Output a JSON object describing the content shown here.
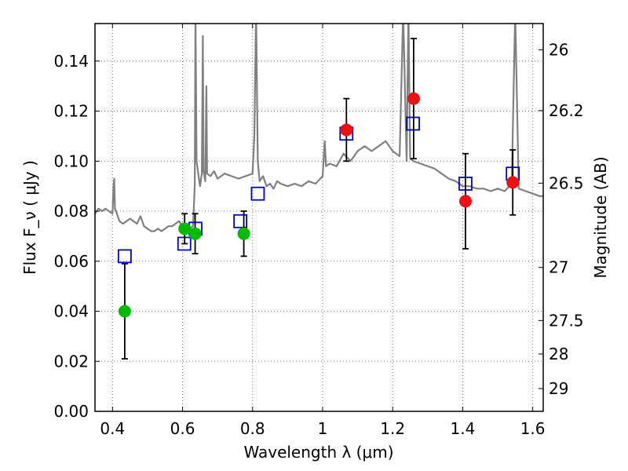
{
  "chart_data": {
    "type": "scatter",
    "xlabel": "Wavelength  λ (μm)",
    "ylabel": "Flux  F_ν  ( μJy )",
    "y2label": "Magnitude (AB)",
    "xlim": [
      0.35,
      1.63
    ],
    "ylim": [
      0.0,
      0.155
    ],
    "grid": true,
    "x_ticks": [
      0.4,
      0.6,
      0.8,
      1.0,
      1.2,
      1.4,
      1.6
    ],
    "x_tick_labels": [
      "0.4",
      "0.6",
      "0.8",
      "1",
      "1.2",
      "1.4",
      "1.6"
    ],
    "y_ticks": [
      0.0,
      0.02,
      0.04,
      0.06,
      0.08,
      0.1,
      0.12,
      0.14
    ],
    "y_tick_labels": [
      "0.00",
      "0.02",
      "0.04",
      "0.06",
      "0.08",
      "0.10",
      "0.12",
      "0.14"
    ],
    "magnitude_ticks": [
      {
        "label": "26",
        "flux": 0.1445
      },
      {
        "label": "26.2",
        "flux": 0.1202
      },
      {
        "label": "26.5",
        "flux": 0.0912
      },
      {
        "label": "27",
        "flux": 0.0575
      },
      {
        "label": "27.5",
        "flux": 0.0363
      },
      {
        "label": "28",
        "flux": 0.0229
      },
      {
        "label": "29",
        "flux": 0.0091
      }
    ],
    "colors": {
      "model": "#808080",
      "model_flux": "#0000cc",
      "optical": "#00bb00",
      "nir": "#ee1111",
      "errorbar": "#000000",
      "grid": "#555555"
    },
    "series": [
      {
        "name": "model_spectrum",
        "style": "line",
        "x": [
          0.35,
          0.36,
          0.37,
          0.38,
          0.39,
          0.4,
          0.403,
          0.405,
          0.407,
          0.41,
          0.42,
          0.43,
          0.44,
          0.45,
          0.46,
          0.47,
          0.48,
          0.49,
          0.5,
          0.51,
          0.52,
          0.53,
          0.54,
          0.55,
          0.56,
          0.57,
          0.58,
          0.59,
          0.6,
          0.61,
          0.62,
          0.63,
          0.635,
          0.637,
          0.64,
          0.65,
          0.655,
          0.658,
          0.66,
          0.665,
          0.668,
          0.67,
          0.68,
          0.69,
          0.7,
          0.72,
          0.74,
          0.76,
          0.78,
          0.8,
          0.805,
          0.81,
          0.815,
          0.82,
          0.83,
          0.84,
          0.85,
          0.86,
          0.87,
          0.88,
          0.9,
          0.92,
          0.94,
          0.96,
          0.98,
          1.0,
          1.003,
          1.006,
          1.01,
          1.02,
          1.04,
          1.06,
          1.08,
          1.1,
          1.12,
          1.14,
          1.16,
          1.18,
          1.2,
          1.22,
          1.23,
          1.24,
          1.245,
          1.25,
          1.26,
          1.28,
          1.3,
          1.32,
          1.34,
          1.36,
          1.38,
          1.4,
          1.42,
          1.44,
          1.46,
          1.48,
          1.5,
          1.52,
          1.54,
          1.55,
          1.56,
          1.58,
          1.6,
          1.62,
          1.63
        ],
        "y": [
          0.079,
          0.081,
          0.08,
          0.081,
          0.08,
          0.079,
          0.09,
          0.093,
          0.081,
          0.08,
          0.076,
          0.075,
          0.076,
          0.077,
          0.076,
          0.075,
          0.078,
          0.074,
          0.073,
          0.072,
          0.072,
          0.073,
          0.072,
          0.073,
          0.074,
          0.074,
          0.075,
          0.076,
          0.074,
          0.073,
          0.073,
          0.074,
          0.09,
          0.16,
          0.1,
          0.09,
          0.095,
          0.15,
          0.096,
          0.092,
          0.13,
          0.095,
          0.094,
          0.096,
          0.093,
          0.095,
          0.094,
          0.093,
          0.094,
          0.095,
          0.11,
          0.16,
          0.1,
          0.092,
          0.094,
          0.09,
          0.091,
          0.089,
          0.092,
          0.091,
          0.09,
          0.091,
          0.09,
          0.092,
          0.091,
          0.094,
          0.101,
          0.108,
          0.098,
          0.099,
          0.098,
          0.103,
          0.1,
          0.104,
          0.106,
          0.104,
          0.106,
          0.108,
          0.104,
          0.102,
          0.16,
          0.1,
          0.16,
          0.101,
          0.1,
          0.099,
          0.098,
          0.097,
          0.095,
          0.093,
          0.092,
          0.09,
          0.09,
          0.089,
          0.089,
          0.088,
          0.089,
          0.088,
          0.091,
          0.16,
          0.089,
          0.088,
          0.087,
          0.086,
          0.086
        ]
      },
      {
        "name": "model_flux",
        "style": "open-square",
        "x": [
          0.435,
          0.605,
          0.637,
          0.765,
          0.815,
          1.068,
          1.258,
          1.408,
          1.543
        ],
        "y": [
          0.062,
          0.067,
          0.073,
          0.076,
          0.087,
          0.111,
          0.115,
          0.091,
          0.095
        ]
      },
      {
        "name": "optical_photometry",
        "style": "filled-circle",
        "x": [
          0.435,
          0.606,
          0.636,
          0.775
        ],
        "y": [
          0.04,
          0.073,
          0.071,
          0.071
        ],
        "yerr": [
          0.019,
          0.006,
          0.008,
          0.009
        ]
      },
      {
        "name": "nir_photometry",
        "style": "filled-circle",
        "x": [
          1.068,
          1.26,
          1.408,
          1.543
        ],
        "y": [
          0.1125,
          0.125,
          0.084,
          0.0915
        ],
        "yerr": [
          0.0125,
          0.024,
          0.019,
          0.013
        ]
      }
    ]
  }
}
